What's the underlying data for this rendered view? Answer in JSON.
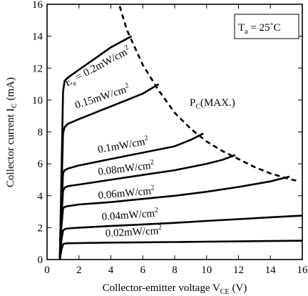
{
  "chart_data": {
    "type": "line",
    "xlabel": "Collector-emitter voltage V",
    "xlabel_sub": "CE",
    "xlabel_unit": "(V)",
    "ylabel": "Collector current I",
    "ylabel_sub": "C",
    "ylabel_unit": "(mA)",
    "xlim": [
      0,
      16
    ],
    "ylim": [
      0,
      16
    ],
    "xticks": [
      0,
      2,
      4,
      6,
      8,
      10,
      12,
      14,
      16
    ],
    "yticks": [
      0,
      2,
      4,
      6,
      8,
      10,
      12,
      14,
      16
    ],
    "grid": false,
    "condition": {
      "label": "T",
      "sub": "a",
      "value": " = 25˚C"
    },
    "pc_max": {
      "label": "P",
      "sub": "C",
      "suffix": "(MAX.)",
      "x": [
        4.4,
        5,
        6,
        7,
        8,
        9,
        10,
        11,
        12,
        13,
        14,
        15,
        15.8
      ],
      "y": [
        16.4,
        14.4,
        12.2,
        10.6,
        9.2,
        8.2,
        7.4,
        6.8,
        6.3,
        5.8,
        5.4,
        5.1,
        4.9
      ]
    },
    "series": [
      {
        "name": "0.2mW/cm",
        "prefix": "E",
        "prefix_sub": "e",
        "prefix_eq": " = ",
        "x": [
          0.8,
          0.9,
          1.0,
          1.1,
          1.3,
          2,
          3,
          4,
          5.3
        ],
        "y": [
          0,
          5,
          10.5,
          11.2,
          11.4,
          11.9,
          12.6,
          13.3,
          14.0
        ]
      },
      {
        "name": "0.15mW/cm",
        "x": [
          0.8,
          0.9,
          1.0,
          1.1,
          1.3,
          2,
          3,
          4,
          5,
          6,
          7
        ],
        "y": [
          0,
          4,
          7.9,
          8.3,
          8.5,
          8.8,
          9.2,
          9.6,
          10.0,
          10.4,
          11.0
        ]
      },
      {
        "name": "0.1mW/cm",
        "x": [
          0.8,
          0.9,
          1.0,
          1.1,
          1.3,
          2,
          4,
          6,
          8,
          9,
          9.8
        ],
        "y": [
          0,
          3,
          5.4,
          5.6,
          5.7,
          5.9,
          6.3,
          6.7,
          7.1,
          7.5,
          7.9
        ]
      },
      {
        "name": "0.08mW/cm",
        "x": [
          0.8,
          0.9,
          1.0,
          1.1,
          1.3,
          2,
          4,
          6,
          8,
          10,
          11,
          11.8
        ],
        "y": [
          0,
          2.5,
          4.3,
          4.5,
          4.6,
          4.7,
          5.0,
          5.3,
          5.6,
          6.0,
          6.25,
          6.55
        ]
      },
      {
        "name": "0.06mW/cm",
        "x": [
          0.8,
          0.9,
          1.0,
          1.1,
          1.3,
          2,
          4,
          6,
          8,
          10,
          12,
          14,
          15.2
        ],
        "y": [
          0,
          2,
          3.2,
          3.3,
          3.35,
          3.45,
          3.6,
          3.8,
          4.0,
          4.25,
          4.55,
          4.9,
          5.2
        ]
      },
      {
        "name": "0.04mW/cm",
        "x": [
          0.8,
          0.9,
          1.0,
          1.1,
          1.3,
          2,
          4,
          6,
          8,
          10,
          12,
          14,
          16
        ],
        "y": [
          0,
          1.2,
          1.8,
          1.9,
          1.95,
          2.0,
          2.1,
          2.2,
          2.3,
          2.42,
          2.53,
          2.65,
          2.75
        ]
      },
      {
        "name": "0.02mW/cm",
        "x": [
          0.8,
          0.9,
          1.0,
          1.1,
          1.3,
          2,
          4,
          6,
          8,
          10,
          12,
          14,
          16
        ],
        "y": [
          0,
          0.6,
          0.95,
          1.0,
          1.02,
          1.03,
          1.06,
          1.08,
          1.1,
          1.12,
          1.14,
          1.16,
          1.18
        ]
      }
    ],
    "curve_label_sup": "2"
  }
}
